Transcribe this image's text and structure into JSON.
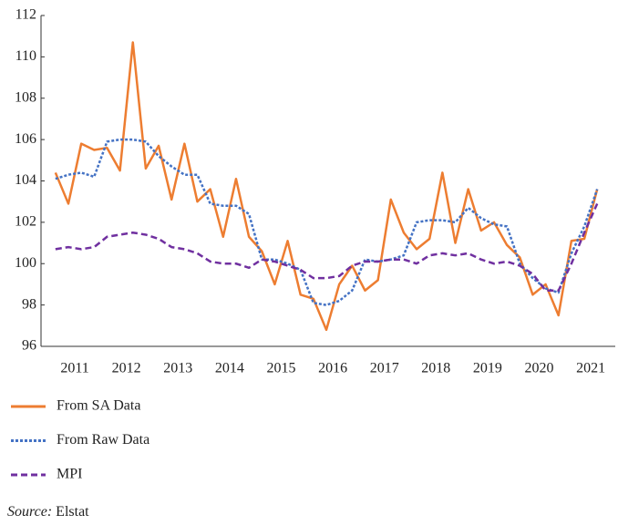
{
  "chart_data": {
    "type": "line",
    "x": [
      2011,
      2011.25,
      2011.5,
      2011.75,
      2012,
      2012.25,
      2012.5,
      2012.75,
      2013,
      2013.25,
      2013.5,
      2013.75,
      2014,
      2014.25,
      2014.5,
      2014.75,
      2015,
      2015.25,
      2015.5,
      2015.75,
      2016,
      2016.25,
      2016.5,
      2016.75,
      2017,
      2017.25,
      2017.5,
      2017.75,
      2018,
      2018.25,
      2018.5,
      2018.75,
      2019,
      2019.25,
      2019.5,
      2019.75,
      2020,
      2020.25,
      2020.5,
      2020.75,
      2021,
      2021.25,
      2021.5
    ],
    "series": [
      {
        "name": "From SA Data",
        "color": "#ed7d31",
        "dash": "solid",
        "values": [
          104.4,
          102.9,
          105.8,
          105.5,
          105.6,
          104.5,
          110.7,
          104.6,
          105.7,
          103.1,
          105.8,
          103.0,
          103.6,
          101.3,
          104.1,
          101.3,
          100.6,
          99.0,
          101.1,
          98.5,
          98.3,
          96.8,
          99.0,
          99.9,
          98.7,
          99.2,
          103.1,
          101.5,
          100.7,
          101.2,
          104.4,
          101.0,
          103.6,
          101.6,
          102.0,
          100.9,
          100.3,
          98.5,
          99.0,
          97.5,
          101.1,
          101.2,
          103.6
        ]
      },
      {
        "name": "From Raw Data",
        "color": "#4472c4",
        "dash": "dotted",
        "values": [
          104.1,
          104.3,
          104.4,
          104.2,
          105.9,
          106.0,
          106.0,
          105.9,
          105.2,
          104.7,
          104.3,
          104.3,
          102.9,
          102.8,
          102.8,
          102.4,
          100.2,
          100.2,
          100.0,
          99.7,
          98.1,
          98.0,
          98.2,
          98.7,
          100.2,
          100.1,
          100.2,
          100.4,
          102.0,
          102.1,
          102.1,
          102.0,
          102.7,
          102.2,
          101.9,
          101.8,
          100.0,
          99.3,
          98.8,
          98.6,
          100.5,
          101.8,
          103.6
        ]
      },
      {
        "name": "MPI",
        "color": "#7030a0",
        "dash": "dashed",
        "values": [
          100.7,
          100.8,
          100.7,
          100.8,
          101.3,
          101.4,
          101.5,
          101.4,
          101.2,
          100.8,
          100.7,
          100.5,
          100.1,
          100.0,
          100.0,
          99.8,
          100.2,
          100.1,
          99.9,
          99.7,
          99.3,
          99.3,
          99.4,
          99.9,
          100.1,
          100.1,
          100.2,
          100.2,
          100.0,
          100.4,
          100.5,
          100.4,
          100.5,
          100.2,
          100.0,
          100.1,
          99.9,
          99.5,
          98.7,
          98.7,
          100.0,
          101.5,
          102.9
        ]
      }
    ],
    "xlim": [
      2010.72,
      2021.85
    ],
    "xticks": [
      {
        "value": 2011.375,
        "label": "2011"
      },
      {
        "value": 2012.375,
        "label": "2012"
      },
      {
        "value": 2013.375,
        "label": "2013"
      },
      {
        "value": 2014.375,
        "label": "2014"
      },
      {
        "value": 2015.375,
        "label": "2015"
      },
      {
        "value": 2016.375,
        "label": "2016"
      },
      {
        "value": 2017.375,
        "label": "2017"
      },
      {
        "value": 2018.375,
        "label": "2018"
      },
      {
        "value": 2019.375,
        "label": "2019"
      },
      {
        "value": 2020.375,
        "label": "2020"
      },
      {
        "value": 2021.375,
        "label": "2021"
      }
    ],
    "ylim": [
      96,
      112
    ],
    "yticks": [
      96,
      98,
      100,
      102,
      104,
      106,
      108,
      110,
      112
    ],
    "grid": false,
    "source_label": "Source:",
    "source": "Elstat"
  }
}
